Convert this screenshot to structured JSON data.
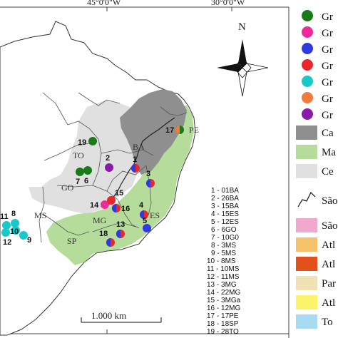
{
  "map": {
    "coord_labels": [
      "45°0'0\"W",
      "30°0'0\"W"
    ],
    "north": "N",
    "scale_bar": "1.000  km",
    "state_labels": [
      "PE",
      "BA",
      "TO",
      "GO",
      "MG",
      "ES",
      "MS",
      "SP"
    ],
    "site_codes": [
      "1 - 01BA",
      "2 - 26BA",
      "3 - 15BA",
      "4 - 15ES",
      "5 - 12ES",
      "6 - 6GO",
      "7 - 10G0",
      "8 - 3MS",
      "9 - 5MS",
      "10 - 8MS",
      "11 - 10MS",
      "12 - 11MS",
      "13 - 3MG",
      "14 - 22MG",
      "15 - 3MGa",
      "16 - 12MG",
      "17 - 17PE",
      "18 - 18SP",
      "19 - 28TO"
    ],
    "point_numbers": [
      "1",
      "2",
      "3",
      "4",
      "5",
      "6",
      "7",
      "8",
      "9",
      "10",
      "11",
      "12",
      "13",
      "14",
      "15",
      "16",
      "17",
      "18",
      "19"
    ]
  },
  "legend": {
    "groups": [
      {
        "label": "Gr",
        "color": "#1a7a1a"
      },
      {
        "label": "Gr",
        "color": "#ec2a9a"
      },
      {
        "label": "Gr",
        "color": "#2e3adf"
      },
      {
        "label": "Gr",
        "color": "#e8262b"
      },
      {
        "label": "Gr",
        "color": "#19c8c8"
      },
      {
        "label": "Gr",
        "color": "#f27a3a"
      },
      {
        "label": "Gr",
        "color": "#8a1aa8"
      }
    ],
    "biomes": [
      {
        "label": "Ca",
        "color": "#8f8f8f"
      },
      {
        "label": "Ma",
        "color": "#b5dc9a"
      },
      {
        "label": "Ce",
        "color": "#e0e0e0"
      }
    ],
    "line_item": "São",
    "others": [
      {
        "label": "São",
        "color": "#f0a8cf"
      },
      {
        "label": "Atl",
        "color": "#f5c26b"
      },
      {
        "label": "Atl",
        "color": "#e3521c"
      },
      {
        "label": "Par",
        "color": "#f1e2b6"
      },
      {
        "label": "Atl",
        "color": "#fbf46a"
      },
      {
        "label": "To",
        "color": "#a8dbf2"
      }
    ]
  }
}
